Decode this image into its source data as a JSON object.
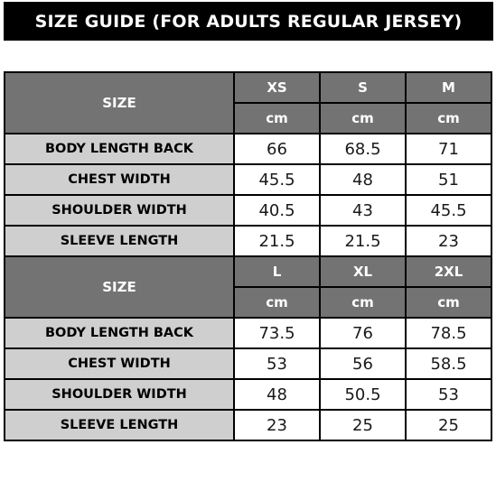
{
  "title": "SIZE GUIDE (FOR ADULTS REGULAR JERSEY)",
  "sections": [
    {
      "size_label": "SIZE",
      "sizes": [
        "XS",
        "S",
        "M"
      ],
      "units": [
        "cm",
        "cm",
        "cm"
      ],
      "rows": [
        {
          "label": "BODY LENGTH BACK",
          "values": [
            "66",
            "68.5",
            "71"
          ]
        },
        {
          "label": "CHEST WIDTH",
          "values": [
            "45.5",
            "48",
            "51"
          ]
        },
        {
          "label": "SHOULDER WIDTH",
          "values": [
            "40.5",
            "43",
            "45.5"
          ]
        },
        {
          "label": "SLEEVE LENGTH",
          "values": [
            "21.5",
            "21.5",
            "23"
          ]
        }
      ]
    },
    {
      "size_label": "SIZE",
      "sizes": [
        "L",
        "XL",
        "2XL"
      ],
      "units": [
        "cm",
        "cm",
        "cm"
      ],
      "rows": [
        {
          "label": "BODY LENGTH BACK",
          "values": [
            "73.5",
            "76",
            "78.5"
          ]
        },
        {
          "label": "CHEST WIDTH",
          "values": [
            "53",
            "56",
            "58.5"
          ]
        },
        {
          "label": "SHOULDER WIDTH",
          "values": [
            "48",
            "50.5",
            "53"
          ]
        },
        {
          "label": "SLEEVE LENGTH",
          "values": [
            "23",
            "25",
            "25"
          ]
        }
      ]
    }
  ],
  "colors": {
    "title_bg": "#000000",
    "header_bg": "#737373",
    "label_bg": "#cfcfcf",
    "value_bg": "#ffffff"
  }
}
